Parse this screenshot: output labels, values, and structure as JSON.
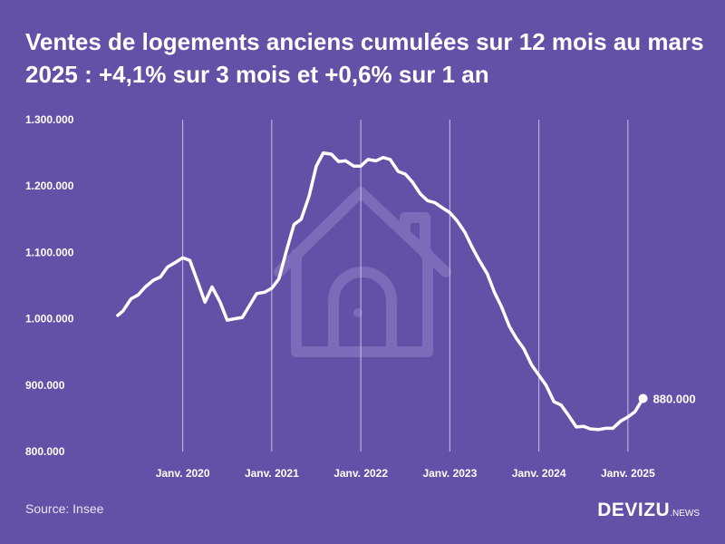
{
  "chart_data": {
    "type": "line",
    "title": "Ventes de logements anciens cumulées sur 12 mois au mars 2025 : +4,1% sur 3 mois et +0,6% sur 1 an",
    "xlabel": "",
    "ylabel": "",
    "ylim": [
      800000,
      1300000
    ],
    "xlim": [
      2019.2,
      2025.5
    ],
    "yticks": [
      {
        "value": 1300000,
        "label": "1.300.000"
      },
      {
        "value": 1200000,
        "label": "1.200.000"
      },
      {
        "value": 1100000,
        "label": "1.100.000"
      },
      {
        "value": 1000000,
        "label": "1.000.000"
      },
      {
        "value": 900000,
        "label": "900.000"
      },
      {
        "value": 800000,
        "label": "800.000"
      }
    ],
    "xticks": [
      {
        "value": 2020,
        "label": "Janv. 2020"
      },
      {
        "value": 2021,
        "label": "Janv. 2021"
      },
      {
        "value": 2022,
        "label": "Janv. 2022"
      },
      {
        "value": 2023,
        "label": "Janv. 2023"
      },
      {
        "value": 2024,
        "label": "Janv. 2024"
      },
      {
        "value": 2025,
        "label": "Janv. 2025"
      }
    ],
    "grid": "vertical",
    "series": [
      {
        "name": "Ventes de logements anciens cumulées sur 12 mois",
        "x": [
          2019.27,
          2019.33,
          2019.42,
          2019.5,
          2019.58,
          2019.67,
          2019.75,
          2019.83,
          2019.92,
          2020.0,
          2020.08,
          2020.17,
          2020.25,
          2020.33,
          2020.42,
          2020.5,
          2020.58,
          2020.67,
          2020.75,
          2020.83,
          2020.92,
          2021.0,
          2021.08,
          2021.17,
          2021.25,
          2021.33,
          2021.42,
          2021.5,
          2021.58,
          2021.67,
          2021.75,
          2021.83,
          2021.92,
          2022.0,
          2022.08,
          2022.17,
          2022.25,
          2022.33,
          2022.42,
          2022.5,
          2022.58,
          2022.67,
          2022.75,
          2022.83,
          2022.92,
          2023.0,
          2023.08,
          2023.17,
          2023.25,
          2023.33,
          2023.42,
          2023.5,
          2023.58,
          2023.67,
          2023.75,
          2023.83,
          2023.92,
          2024.0,
          2024.08,
          2024.17,
          2024.25,
          2024.33,
          2024.42,
          2024.5,
          2024.58,
          2024.67,
          2024.75,
          2024.83,
          2024.92,
          2025.0,
          2025.08,
          2025.17
        ],
        "values": [
          1005000,
          1012000,
          1030000,
          1036000,
          1048000,
          1058000,
          1063000,
          1078000,
          1085000,
          1092000,
          1088000,
          1055000,
          1025000,
          1048000,
          1025000,
          998000,
          1000000,
          1002000,
          1020000,
          1038000,
          1040000,
          1046000,
          1060000,
          1105000,
          1142000,
          1150000,
          1185000,
          1230000,
          1250000,
          1248000,
          1237000,
          1238000,
          1230000,
          1230000,
          1240000,
          1238000,
          1243000,
          1240000,
          1222000,
          1218000,
          1206000,
          1188000,
          1178000,
          1175000,
          1167000,
          1160000,
          1148000,
          1130000,
          1108000,
          1088000,
          1068000,
          1040000,
          1018000,
          988000,
          970000,
          955000,
          930000,
          915000,
          900000,
          875000,
          870000,
          855000,
          837000,
          838000,
          834000,
          833000,
          835000,
          835000,
          846000,
          852000,
          860000,
          880000
        ]
      }
    ],
    "annotations": [
      {
        "x": 2025.17,
        "y": 880000,
        "text": "880.000"
      }
    ]
  },
  "footer": {
    "source": "Source: Insee",
    "logo_main": "DEVIZU",
    "logo_sub": ".NEWS"
  },
  "colors": {
    "background": "#6351a8",
    "line": "#ffffff",
    "watermark": "#7b6cb9"
  },
  "icons": {
    "watermark": "house-icon"
  }
}
